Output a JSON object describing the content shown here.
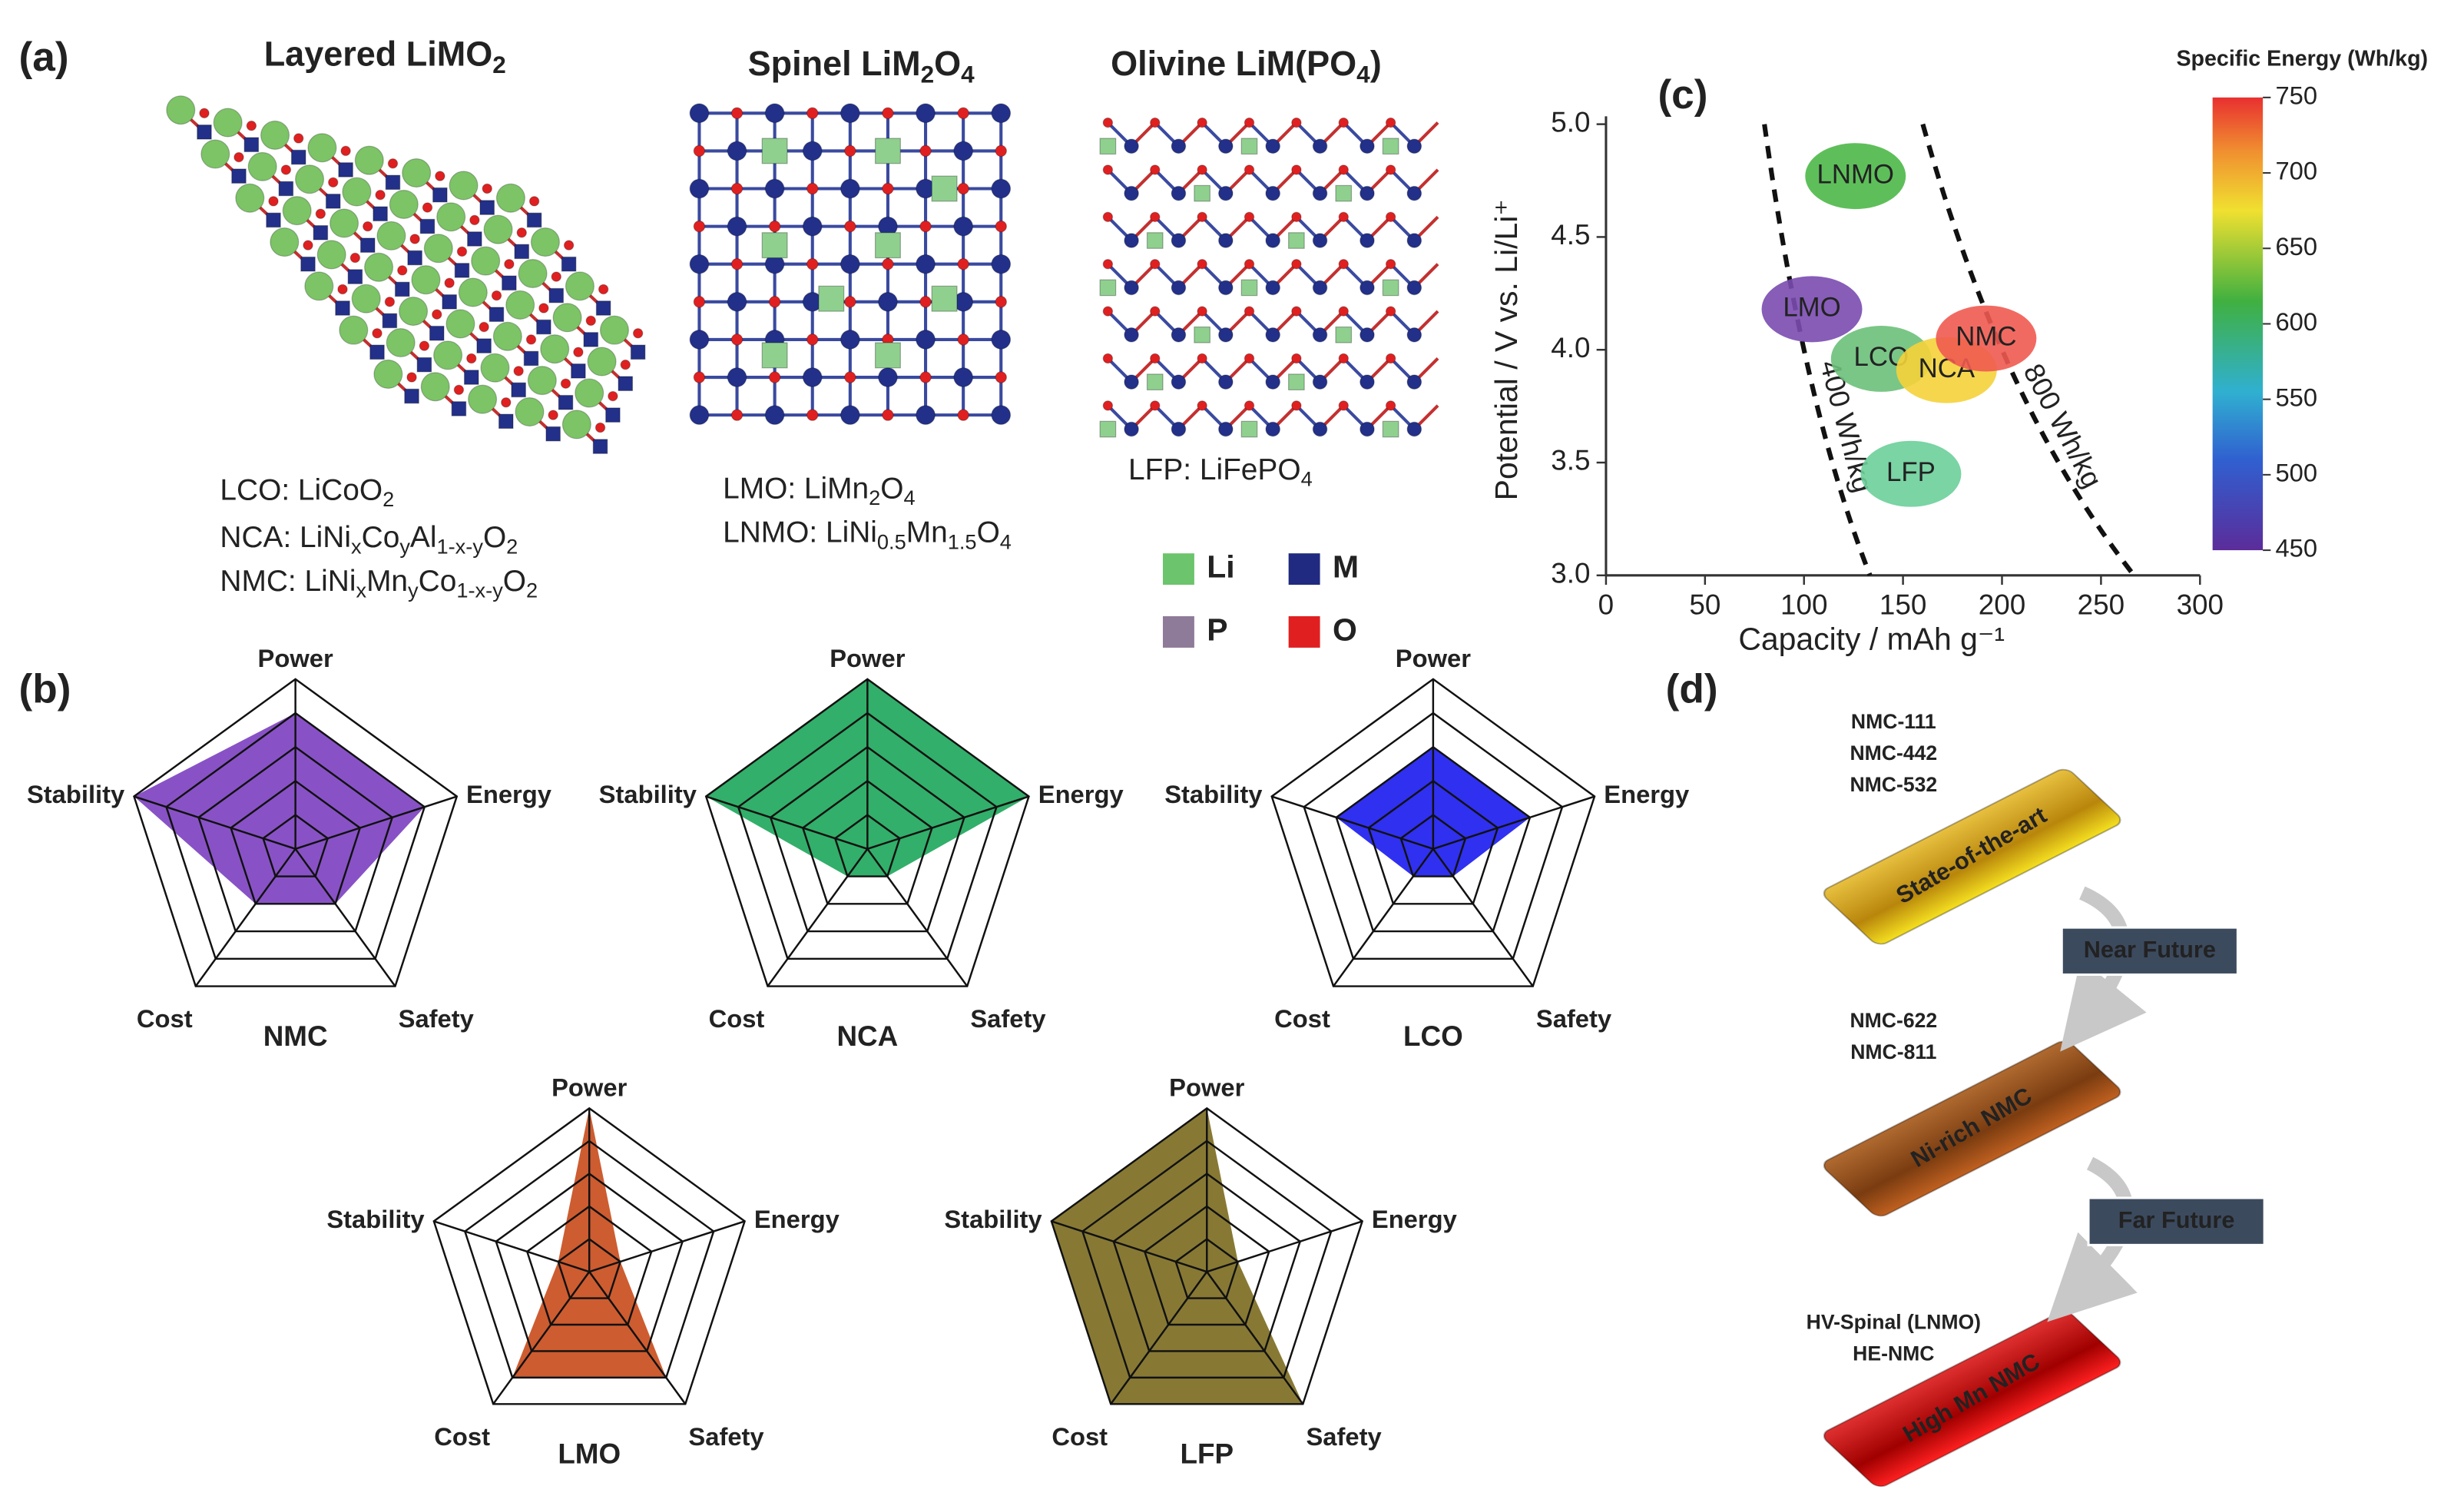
{
  "panel_labels": [
    "(a)",
    "(b)",
    "(c)",
    "(d)"
  ],
  "structures": {
    "titles": [
      [
        "Layered LiMO",
        "2"
      ],
      [
        "Spinel LiM",
        "2",
        "O",
        "4"
      ],
      [
        "Olivine LiM(PO",
        "4",
        ")"
      ]
    ],
    "formulas": [
      [
        [
          "LCO: LiCoO",
          "2"
        ],
        [
          "NCA: LiNi",
          "x",
          "Co",
          "y",
          "Al",
          "1-x-y",
          "O",
          "2"
        ],
        [
          "NMC: LiNi",
          "x",
          "Mn",
          "y",
          "Co",
          "1-x-y",
          "O",
          "2"
        ]
      ],
      [
        [
          "LMO: LiMn",
          "2",
          "O",
          "4"
        ],
        [
          "LNMO: LiNi",
          "0.5",
          "Mn",
          "1.5",
          "O",
          "4"
        ]
      ],
      [
        [
          "LFP: LiFePO",
          "4"
        ]
      ]
    ],
    "legend": [
      {
        "name": "Li",
        "color": "#6cc46c"
      },
      {
        "name": "M",
        "color": "#1f2a80"
      },
      {
        "name": "P",
        "color": "#8e7a99"
      },
      {
        "name": "O",
        "color": "#e02020"
      }
    ]
  },
  "chart_data": [
    {
      "type": "scatter",
      "xlabel": "Capacity / mAh g⁻¹",
      "ylabel": "Potential / V vs. Li/Li⁺",
      "xlim": [
        0,
        300
      ],
      "xticks": [
        0,
        50,
        100,
        150,
        200,
        250,
        300
      ],
      "ylim": [
        3.0,
        5.0
      ],
      "yticks": [
        {
          "value": 3.0,
          "label": "3.0"
        },
        {
          "value": 3.5,
          "label": "3.5"
        },
        {
          "value": 4.0,
          "label": "4.0"
        },
        {
          "value": 4.5,
          "label": "4.5"
        },
        {
          "value": 5.0,
          "label": "5.0"
        }
      ],
      "labels": [
        "LNMO",
        "LMO",
        "LCO",
        "NCA",
        "NMC",
        "LFP"
      ],
      "x": [
        126,
        104,
        139,
        172,
        192,
        154
      ],
      "values": [
        4.77,
        4.18,
        3.96,
        3.91,
        4.05,
        3.45
      ],
      "colors": [
        "#4cb848",
        "#7a4bb0",
        "#6cc07a",
        "#f5d23a",
        "#f05a50",
        "#6ccf9a"
      ],
      "energy_lines": [
        {
          "label": "400 Wh/kg",
          "value": 400
        },
        {
          "label": "800 Wh/kg",
          "value": 800
        }
      ],
      "colorbar": {
        "title": "Specific Energy (Wh/kg)",
        "lim": [
          450,
          750
        ],
        "ticks": [
          450,
          500,
          550,
          600,
          650,
          700,
          750
        ]
      }
    },
    {
      "type": "radar",
      "title": "NMC",
      "color": "#7b3fc0",
      "categories": [
        "Power",
        "Energy",
        "Safety",
        "Cost",
        "Stability"
      ],
      "values": [
        4,
        4,
        2,
        2,
        5
      ],
      "rlim": [
        0,
        5
      ],
      "rticks": [
        1,
        2,
        3,
        4,
        5
      ]
    },
    {
      "type": "radar",
      "title": "NCA",
      "color": "#1ca65a",
      "categories": [
        "Power",
        "Energy",
        "Safety",
        "Cost",
        "Stability"
      ],
      "values": [
        5,
        5,
        1,
        1,
        5
      ],
      "rlim": [
        0,
        5
      ],
      "rticks": [
        1,
        2,
        3,
        4,
        5
      ]
    },
    {
      "type": "radar",
      "title": "LCO",
      "color": "#1a1aee",
      "categories": [
        "Power",
        "Energy",
        "Safety",
        "Cost",
        "Stability"
      ],
      "values": [
        3,
        3,
        1,
        1,
        3
      ],
      "rlim": [
        0,
        5
      ],
      "rticks": [
        1,
        2,
        3,
        4,
        5
      ]
    },
    {
      "type": "radar",
      "title": "LMO",
      "color": "#c84a1a",
      "categories": [
        "Power",
        "Energy",
        "Safety",
        "Cost",
        "Stability"
      ],
      "values": [
        5,
        1,
        4,
        4,
        1
      ],
      "rlim": [
        0,
        5
      ],
      "rticks": [
        1,
        2,
        3,
        4,
        5
      ]
    },
    {
      "type": "radar",
      "title": "LFP",
      "color": "#7a6a1e",
      "categories": [
        "Power",
        "Energy",
        "Safety",
        "Cost",
        "Stability"
      ],
      "values": [
        5,
        1,
        5,
        5,
        5
      ],
      "rlim": [
        0,
        5
      ],
      "rticks": [
        1,
        2,
        3,
        4,
        5
      ]
    }
  ],
  "roadmap": {
    "stages": [
      {
        "materials": [
          "NMC-111",
          "NMC-442",
          "NMC-532"
        ],
        "label": "State-of-the-art"
      },
      {
        "materials": [
          "NMC-622",
          "NMC-811"
        ],
        "label": "Ni-rich NMC"
      },
      {
        "materials": [
          "HV-Spinal (LNMO)",
          "HE-NMC"
        ],
        "label": "High Mn NMC"
      }
    ],
    "transitions": [
      "Near Future",
      "Far Future"
    ]
  }
}
